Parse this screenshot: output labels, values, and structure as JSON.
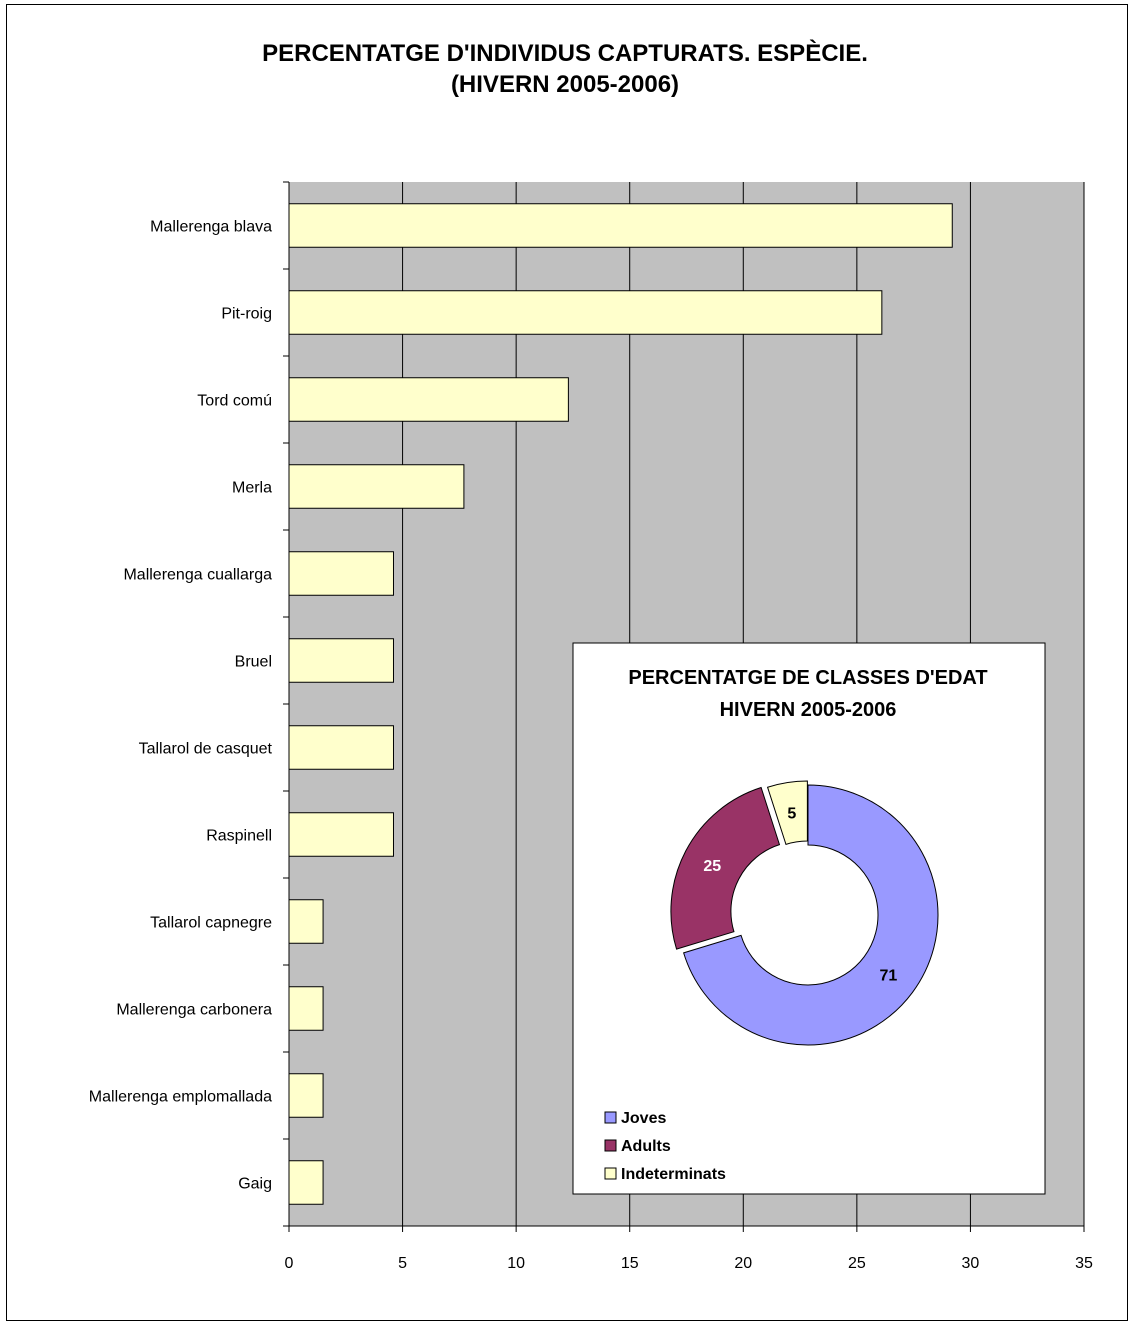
{
  "chart_data": [
    {
      "type": "bar",
      "orientation": "horizontal",
      "title_lines": [
        "PERCENTATGE D'INDIVIDUS CAPTURATS. ESPÈCIE.",
        "(HIVERN 2005-2006)"
      ],
      "categories": [
        "Mallerenga blava",
        "Pit-roig",
        "Tord comú",
        "Merla",
        "Mallerenga cuallarga",
        "Bruel",
        "Tallarol de casquet",
        "Raspinell",
        "Tallarol capnegre",
        "Mallerenga carbonera",
        "Mallerenga emplomallada",
        "Gaig"
      ],
      "values": [
        29.2,
        26.1,
        12.3,
        7.7,
        4.6,
        4.6,
        4.6,
        4.6,
        1.5,
        1.5,
        1.5,
        1.5
      ],
      "xlim": [
        0,
        35
      ],
      "xticks": [
        "0",
        "5",
        "10",
        "15",
        "20",
        "25",
        "30",
        "35"
      ],
      "grid": true,
      "colors": {
        "bar": "#ffffcc",
        "plot_bg": "#c0c0c0",
        "gridline": "#000000"
      }
    },
    {
      "type": "pie",
      "variant": "donut",
      "title_lines": [
        "PERCENTATGE DE CLASSES D'EDAT",
        "HIVERN 2005-2006"
      ],
      "labels": [
        "Joves",
        "Adults",
        "Indeterminats"
      ],
      "values": [
        71,
        25,
        5
      ],
      "value_labels": [
        "71",
        "25",
        "5"
      ],
      "legend_position": "bottom-left",
      "colors": [
        "#9999ff",
        "#993366",
        "#ffffcc"
      ]
    }
  ]
}
